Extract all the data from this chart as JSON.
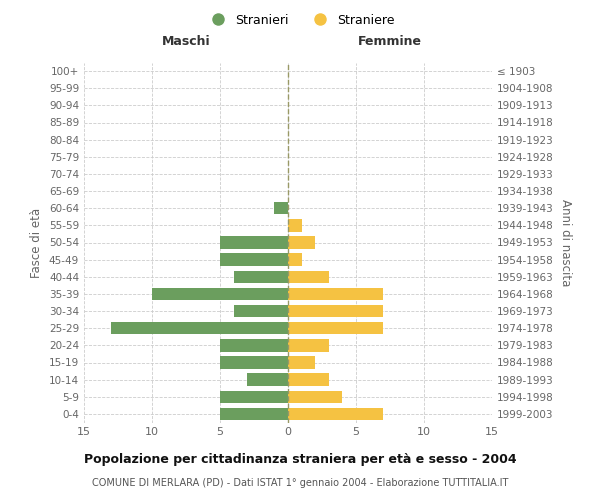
{
  "age_groups": [
    "100+",
    "95-99",
    "90-94",
    "85-89",
    "80-84",
    "75-79",
    "70-74",
    "65-69",
    "60-64",
    "55-59",
    "50-54",
    "45-49",
    "40-44",
    "35-39",
    "30-34",
    "25-29",
    "20-24",
    "15-19",
    "10-14",
    "5-9",
    "0-4"
  ],
  "birth_years": [
    "≤ 1903",
    "1904-1908",
    "1909-1913",
    "1914-1918",
    "1919-1923",
    "1924-1928",
    "1929-1933",
    "1934-1938",
    "1939-1943",
    "1944-1948",
    "1949-1953",
    "1954-1958",
    "1959-1963",
    "1964-1968",
    "1969-1973",
    "1974-1978",
    "1979-1983",
    "1984-1988",
    "1989-1993",
    "1994-1998",
    "1999-2003"
  ],
  "males": [
    0,
    0,
    0,
    0,
    0,
    0,
    0,
    0,
    1,
    0,
    5,
    5,
    4,
    10,
    4,
    13,
    5,
    5,
    3,
    5,
    5
  ],
  "females": [
    0,
    0,
    0,
    0,
    0,
    0,
    0,
    0,
    0,
    1,
    2,
    1,
    3,
    7,
    7,
    7,
    3,
    2,
    3,
    4,
    7
  ],
  "male_color": "#6b9e5e",
  "female_color": "#f5c242",
  "background_color": "#ffffff",
  "grid_color": "#cccccc",
  "title": "Popolazione per cittadinanza straniera per età e sesso - 2004",
  "subtitle": "COMUNE DI MERLARA (PD) - Dati ISTAT 1° gennaio 2004 - Elaborazione TUTTITALIA.IT",
  "ylabel_left": "Fasce di età",
  "ylabel_right": "Anni di nascita",
  "xlabel_left": "Maschi",
  "xlabel_right": "Femmine",
  "legend_stranieri": "Stranieri",
  "legend_straniere": "Straniere",
  "xlim": 15
}
